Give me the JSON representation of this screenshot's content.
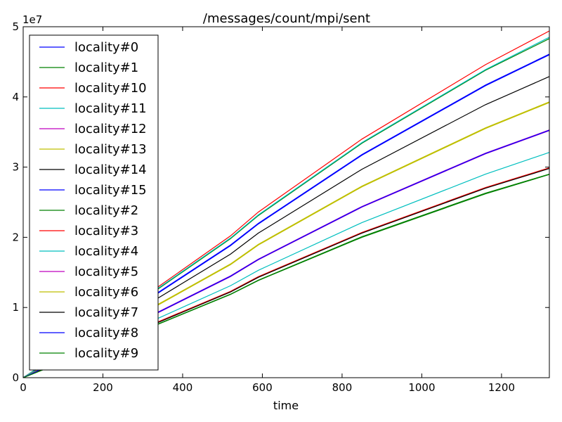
{
  "chart_data": {
    "type": "line",
    "title": "/messages/count/mpi/sent",
    "xlabel": "time",
    "ylabel": "",
    "y_scale_label": "1e7",
    "xlim": [
      0,
      1320
    ],
    "ylim": [
      0,
      50000000
    ],
    "xticks": [
      0,
      200,
      400,
      600,
      800,
      1000,
      1200
    ],
    "yticks": [
      0,
      10000000,
      20000000,
      30000000,
      40000000,
      50000000
    ],
    "xtick_labels": [
      "0",
      "200",
      "400",
      "600",
      "800",
      "1000",
      "1200"
    ],
    "ytick_labels": [
      "0",
      "1",
      "2",
      "3",
      "4",
      "5"
    ],
    "grid": false,
    "legend_position": "upper-left",
    "x": [
      0,
      340,
      520,
      590,
      850,
      1160,
      1320
    ],
    "series": [
      {
        "name": "locality#0",
        "color": "#0000ff",
        "values": [
          0,
          12200000,
          18900000,
          22000000,
          31800000,
          41700000,
          46100000
        ]
      },
      {
        "name": "locality#1",
        "color": "#008000",
        "values": [
          0,
          12700000,
          19800000,
          23100000,
          33400000,
          43800000,
          48300000
        ]
      },
      {
        "name": "locality#10",
        "color": "#ff0000",
        "values": [
          0,
          13000000,
          20200000,
          23600000,
          34000000,
          44600000,
          49400000
        ]
      },
      {
        "name": "locality#11",
        "color": "#00bfbf",
        "values": [
          0,
          8500000,
          13100000,
          15300000,
          22100000,
          29000000,
          32100000
        ]
      },
      {
        "name": "locality#12",
        "color": "#bf00bf",
        "values": [
          0,
          9400000,
          14500000,
          16900000,
          24400000,
          32000000,
          35300000
        ]
      },
      {
        "name": "locality#13",
        "color": "#bfbf00",
        "values": [
          0,
          10400000,
          16100000,
          18900000,
          27200000,
          35500000,
          39200000
        ]
      },
      {
        "name": "locality#14",
        "color": "#000000",
        "values": [
          0,
          11400000,
          17600000,
          20600000,
          29700000,
          38900000,
          42900000
        ]
      },
      {
        "name": "locality#15",
        "color": "#0000ff",
        "values": [
          0,
          12100000,
          18800000,
          21900000,
          31700000,
          41600000,
          46000000
        ]
      },
      {
        "name": "locality#2",
        "color": "#008000",
        "values": [
          0,
          7700000,
          11900000,
          13900000,
          20100000,
          26300000,
          29000000
        ]
      },
      {
        "name": "locality#3",
        "color": "#ff0000",
        "values": [
          0,
          8000000,
          12300000,
          14400000,
          20700000,
          27100000,
          29900000
        ]
      },
      {
        "name": "locality#4",
        "color": "#00bfbf",
        "values": [
          0,
          12800000,
          19900000,
          23200000,
          33500000,
          43900000,
          48500000
        ]
      },
      {
        "name": "locality#5",
        "color": "#bf00bf",
        "values": [
          0,
          9300000,
          14400000,
          16800000,
          24300000,
          31900000,
          35200000
        ]
      },
      {
        "name": "locality#6",
        "color": "#bfbf00",
        "values": [
          0,
          10500000,
          16200000,
          19000000,
          27300000,
          35600000,
          39300000
        ]
      },
      {
        "name": "locality#7",
        "color": "#000000",
        "values": [
          0,
          7900000,
          12200000,
          14300000,
          20600000,
          27000000,
          29800000
        ]
      },
      {
        "name": "locality#8",
        "color": "#0000ff",
        "values": [
          0,
          9350000,
          14450000,
          16850000,
          24350000,
          31950000,
          35250000
        ]
      },
      {
        "name": "locality#9",
        "color": "#008000",
        "values": [
          0,
          7650000,
          11850000,
          13850000,
          20000000,
          26200000,
          28950000
        ]
      }
    ]
  }
}
